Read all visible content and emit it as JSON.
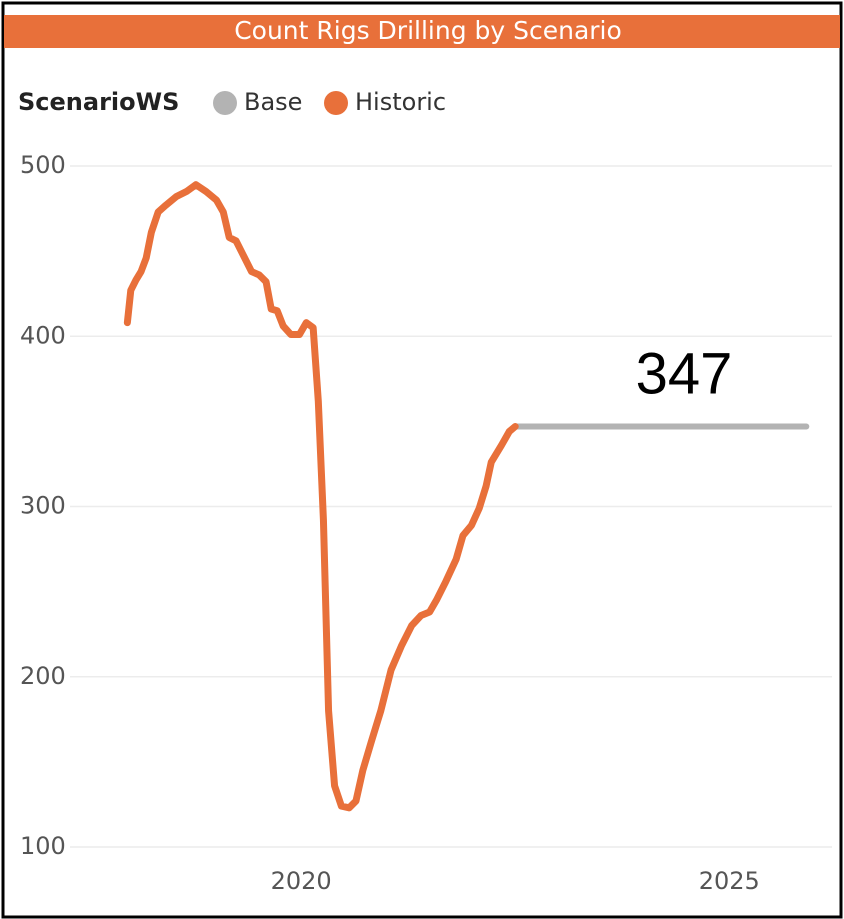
{
  "chart_data": {
    "type": "line",
    "title": "Count Rigs Drilling by Scenario",
    "legend_title": "ScenarioWS",
    "annotation": "347",
    "xlim": [
      2017.3,
      2026.2
    ],
    "xticks": [
      2020,
      2025
    ],
    "ylim": [
      100,
      500
    ],
    "yticks": [
      100,
      200,
      300,
      400,
      500
    ],
    "grid": true,
    "series": [
      {
        "name": "Base",
        "color": "#b3b3b3",
        "x": [
          2022.5,
          2025.9
        ],
        "values": [
          347,
          347
        ]
      },
      {
        "name": "Historic",
        "color": "#e8703a",
        "x": [
          2017.97,
          2018.01,
          2018.07,
          2018.13,
          2018.19,
          2018.25,
          2018.33,
          2018.42,
          2018.54,
          2018.66,
          2018.77,
          2018.89,
          2019.01,
          2019.09,
          2019.16,
          2019.24,
          2019.32,
          2019.42,
          2019.51,
          2019.59,
          2019.65,
          2019.72,
          2019.79,
          2019.88,
          2019.98,
          2020.06,
          2020.14,
          2020.2,
          2020.26,
          2020.32,
          2020.39,
          2020.47,
          2020.56,
          2020.64,
          2020.72,
          2020.82,
          2020.93,
          2021.05,
          2021.17,
          2021.29,
          2021.4,
          2021.5,
          2021.58,
          2021.69,
          2021.81,
          2021.89,
          2021.99,
          2022.08,
          2022.16,
          2022.22,
          2022.34,
          2022.43,
          2022.5
        ],
        "values": [
          408,
          427,
          433,
          438,
          446,
          461,
          473,
          477,
          482,
          485,
          489,
          485,
          480,
          473,
          458,
          456,
          448,
          438,
          436,
          432,
          416,
          415,
          406,
          401,
          401,
          408,
          405,
          362,
          292,
          180,
          136,
          124,
          123,
          127,
          145,
          162,
          180,
          204,
          218,
          230,
          236,
          238,
          245,
          256,
          269,
          283,
          289,
          299,
          312,
          326,
          336,
          344,
          347
        ]
      }
    ]
  }
}
